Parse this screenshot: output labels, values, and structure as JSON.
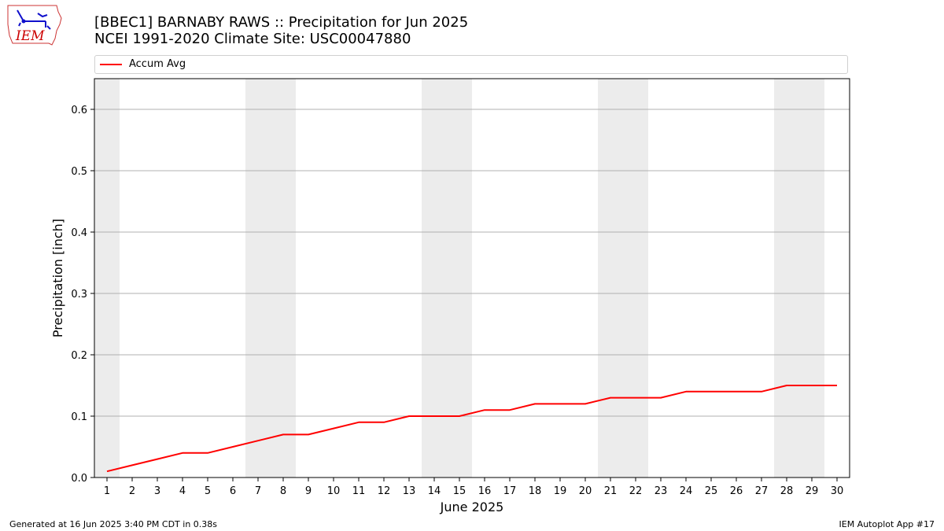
{
  "header": {
    "title_line1": "[BBEC1] BARNABY RAWS :: Precipitation for Jun 2025",
    "title_line2": "NCEI 1991-2020 Climate Site: USC00047880"
  },
  "logo": {
    "text": "IEM",
    "color": "#cc0000"
  },
  "footer": {
    "left": "Generated at 16 Jun 2025 3:40 PM CDT in 0.38s",
    "right": "IEM Autoplot App #17"
  },
  "chart_data": {
    "type": "line",
    "xlabel": "June 2025",
    "ylabel": "Precipitation [inch]",
    "x": [
      1,
      2,
      3,
      4,
      5,
      6,
      7,
      8,
      9,
      10,
      11,
      12,
      13,
      14,
      15,
      16,
      17,
      18,
      19,
      20,
      21,
      22,
      23,
      24,
      25,
      26,
      27,
      28,
      29,
      30
    ],
    "xlim": [
      0.5,
      30.5
    ],
    "ylim": [
      0,
      0.65
    ],
    "yticks": [
      0.0,
      0.1,
      0.2,
      0.3,
      0.4,
      0.5,
      0.6
    ],
    "ytick_labels": [
      "0.0",
      "0.1",
      "0.2",
      "0.3",
      "0.4",
      "0.5",
      "0.6"
    ],
    "grid": "y",
    "weekend_days": [
      1,
      7,
      8,
      14,
      15,
      21,
      22,
      28,
      29
    ],
    "weekend_color": "#ececec",
    "legend_position": "top",
    "series": [
      {
        "name": "Accum Avg",
        "color": "#ff0000",
        "values": [
          0.01,
          0.02,
          0.03,
          0.04,
          0.04,
          0.05,
          0.06,
          0.07,
          0.07,
          0.08,
          0.09,
          0.09,
          0.1,
          0.1,
          0.1,
          0.11,
          0.11,
          0.12,
          0.12,
          0.12,
          0.13,
          0.13,
          0.13,
          0.14,
          0.14,
          0.14,
          0.14,
          0.15,
          0.15,
          0.15
        ]
      }
    ]
  }
}
